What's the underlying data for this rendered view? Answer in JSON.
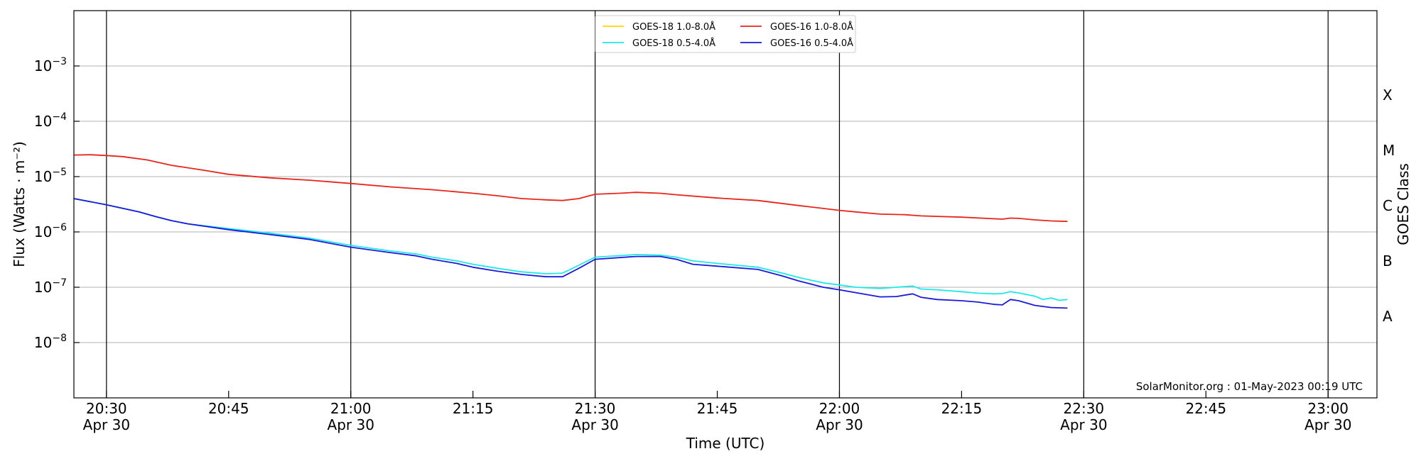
{
  "chart_data": {
    "type": "line",
    "y_scale": "log",
    "grid": "horizontal",
    "legend_position": "top-center",
    "xlabel": "Time (UTC)",
    "ylabel": "Flux (Watts · m⁻²)",
    "ylabel_right": "GOES Class",
    "xlim": [
      "2023-04-30 20:26",
      "2023-04-30 23:06"
    ],
    "ylim": [
      1e-09,
      0.01
    ],
    "x_ticks": [
      {
        "time": "20:30",
        "label": "20:30",
        "date": "Apr 30"
      },
      {
        "time": "20:45",
        "label": "20:45",
        "date": ""
      },
      {
        "time": "21:00",
        "label": "21:00",
        "date": "Apr 30"
      },
      {
        "time": "21:15",
        "label": "21:15",
        "date": ""
      },
      {
        "time": "21:30",
        "label": "21:30",
        "date": "Apr 30"
      },
      {
        "time": "21:45",
        "label": "21:45",
        "date": ""
      },
      {
        "time": "22:00",
        "label": "22:00",
        "date": "Apr 30"
      },
      {
        "time": "22:15",
        "label": "22:15",
        "date": ""
      },
      {
        "time": "22:30",
        "label": "22:30",
        "date": "Apr 30"
      },
      {
        "time": "22:45",
        "label": "22:45",
        "date": ""
      },
      {
        "time": "23:00",
        "label": "23:00",
        "date": "Apr 30"
      }
    ],
    "y_ticks": [
      {
        "value": 1e-08,
        "exp": "-8"
      },
      {
        "value": 1e-07,
        "exp": "-7"
      },
      {
        "value": 1e-06,
        "exp": "-6"
      },
      {
        "value": 1e-05,
        "exp": "-5"
      },
      {
        "value": 0.0001,
        "exp": "-4"
      },
      {
        "value": 0.001,
        "exp": "-3"
      }
    ],
    "goes_classes": [
      {
        "label": "A",
        "value": 3e-08
      },
      {
        "label": "B",
        "value": 3e-07
      },
      {
        "label": "C",
        "value": 3e-06
      },
      {
        "label": "M",
        "value": 3e-05
      },
      {
        "label": "X",
        "value": 0.0003
      }
    ],
    "vertical_lines": [
      "20:30",
      "21:00",
      "21:30",
      "22:00",
      "22:30",
      "23:00"
    ],
    "series": [
      {
        "name": "GOES-18 1.0-8.0Å",
        "color": "#ffd700",
        "points": []
      },
      {
        "name": "GOES-18 0.5-4.0Å",
        "color": "#1fe8e8",
        "points": [
          [
            "20:26",
            4e-06
          ],
          [
            "20:30",
            3.1e-06
          ],
          [
            "20:34",
            2.3e-06
          ],
          [
            "20:36",
            1.9e-06
          ],
          [
            "20:38",
            1.6e-06
          ],
          [
            "20:40",
            1.4e-06
          ],
          [
            "20:45",
            1.15e-06
          ],
          [
            "20:50",
            9.5e-07
          ],
          [
            "20:55",
            7.7e-07
          ],
          [
            "21:00",
            5.7e-07
          ],
          [
            "21:05",
            4.5e-07
          ],
          [
            "21:08",
            4e-07
          ],
          [
            "21:10",
            3.5e-07
          ],
          [
            "21:13",
            3e-07
          ],
          [
            "21:15",
            2.6e-07
          ],
          [
            "21:18",
            2.2e-07
          ],
          [
            "21:21",
            1.9e-07
          ],
          [
            "21:24",
            1.75e-07
          ],
          [
            "21:26",
            1.8e-07
          ],
          [
            "21:28",
            2.5e-07
          ],
          [
            "21:30",
            3.5e-07
          ],
          [
            "21:35",
            3.9e-07
          ],
          [
            "21:38",
            3.8e-07
          ],
          [
            "21:40",
            3.5e-07
          ],
          [
            "21:42",
            3e-07
          ],
          [
            "21:45",
            2.7e-07
          ],
          [
            "21:50",
            2.3e-07
          ],
          [
            "21:53",
            1.8e-07
          ],
          [
            "21:55",
            1.5e-07
          ],
          [
            "21:58",
            1.2e-07
          ],
          [
            "22:00",
            1.1e-07
          ],
          [
            "22:02",
            1e-07
          ],
          [
            "22:05",
            9.5e-08
          ],
          [
            "22:07",
            1e-07
          ],
          [
            "22:09",
            1.05e-07
          ],
          [
            "22:10",
            9.3e-08
          ],
          [
            "22:12",
            9e-08
          ],
          [
            "22:15",
            8.3e-08
          ],
          [
            "22:17",
            7.8e-08
          ],
          [
            "22:19",
            7.6e-08
          ],
          [
            "22:20",
            7.7e-08
          ],
          [
            "22:21",
            8.3e-08
          ],
          [
            "22:22",
            7.9e-08
          ],
          [
            "22:24",
            6.9e-08
          ],
          [
            "22:25",
            6e-08
          ],
          [
            "22:26",
            6.4e-08
          ],
          [
            "22:27",
            5.8e-08
          ],
          [
            "22:28",
            6e-08
          ]
        ]
      },
      {
        "name": "GOES-16 1.0-8.0Å",
        "color": "#e8251a",
        "points": [
          [
            "20:26",
            2.45e-05
          ],
          [
            "20:28",
            2.48e-05
          ],
          [
            "20:30",
            2.4e-05
          ],
          [
            "20:32",
            2.3e-05
          ],
          [
            "20:35",
            2e-05
          ],
          [
            "20:38",
            1.6e-05
          ],
          [
            "20:42",
            1.3e-05
          ],
          [
            "20:45",
            1.1e-05
          ],
          [
            "20:50",
            9.5e-06
          ],
          [
            "20:55",
            8.6e-06
          ],
          [
            "21:00",
            7.5e-06
          ],
          [
            "21:05",
            6.5e-06
          ],
          [
            "21:10",
            5.8e-06
          ],
          [
            "21:15",
            5e-06
          ],
          [
            "21:18",
            4.5e-06
          ],
          [
            "21:21",
            4e-06
          ],
          [
            "21:24",
            3.8e-06
          ],
          [
            "21:26",
            3.7e-06
          ],
          [
            "21:28",
            4e-06
          ],
          [
            "21:30",
            4.8e-06
          ],
          [
            "21:33",
            5e-06
          ],
          [
            "21:35",
            5.2e-06
          ],
          [
            "21:38",
            5e-06
          ],
          [
            "21:40",
            4.7e-06
          ],
          [
            "21:45",
            4.1e-06
          ],
          [
            "21:50",
            3.7e-06
          ],
          [
            "21:55",
            3e-06
          ],
          [
            "22:00",
            2.45e-06
          ],
          [
            "22:02",
            2.3e-06
          ],
          [
            "22:05",
            2.1e-06
          ],
          [
            "22:08",
            2.05e-06
          ],
          [
            "22:10",
            1.95e-06
          ],
          [
            "22:15",
            1.85e-06
          ],
          [
            "22:20",
            1.7e-06
          ],
          [
            "22:21",
            1.78e-06
          ],
          [
            "22:22",
            1.76e-06
          ],
          [
            "22:24",
            1.65e-06
          ],
          [
            "22:26",
            1.58e-06
          ],
          [
            "22:28",
            1.55e-06
          ]
        ]
      },
      {
        "name": "GOES-16 0.5-4.0Å",
        "color": "#1a1adb",
        "points": [
          [
            "20:26",
            4e-06
          ],
          [
            "20:30",
            3.1e-06
          ],
          [
            "20:34",
            2.3e-06
          ],
          [
            "20:36",
            1.9e-06
          ],
          [
            "20:38",
            1.6e-06
          ],
          [
            "20:40",
            1.4e-06
          ],
          [
            "20:45",
            1.1e-06
          ],
          [
            "20:50",
            9e-07
          ],
          [
            "20:55",
            7.3e-07
          ],
          [
            "21:00",
            5.3e-07
          ],
          [
            "21:05",
            4.2e-07
          ],
          [
            "21:08",
            3.7e-07
          ],
          [
            "21:10",
            3.2e-07
          ],
          [
            "21:13",
            2.7e-07
          ],
          [
            "21:15",
            2.3e-07
          ],
          [
            "21:18",
            1.95e-07
          ],
          [
            "21:21",
            1.7e-07
          ],
          [
            "21:24",
            1.55e-07
          ],
          [
            "21:26",
            1.55e-07
          ],
          [
            "21:28",
            2.2e-07
          ],
          [
            "21:30",
            3.2e-07
          ],
          [
            "21:35",
            3.6e-07
          ],
          [
            "21:38",
            3.6e-07
          ],
          [
            "21:40",
            3.2e-07
          ],
          [
            "21:42",
            2.6e-07
          ],
          [
            "21:45",
            2.4e-07
          ],
          [
            "21:50",
            2.1e-07
          ],
          [
            "21:53",
            1.6e-07
          ],
          [
            "21:55",
            1.3e-07
          ],
          [
            "21:58",
            1e-07
          ],
          [
            "22:00",
            9e-08
          ],
          [
            "22:02",
            8e-08
          ],
          [
            "22:05",
            6.7e-08
          ],
          [
            "22:07",
            6.8e-08
          ],
          [
            "22:09",
            7.6e-08
          ],
          [
            "22:10",
            6.6e-08
          ],
          [
            "22:12",
            6e-08
          ],
          [
            "22:15",
            5.7e-08
          ],
          [
            "22:17",
            5.4e-08
          ],
          [
            "22:19",
            4.9e-08
          ],
          [
            "22:20",
            4.8e-08
          ],
          [
            "22:21",
            6e-08
          ],
          [
            "22:22",
            5.7e-08
          ],
          [
            "22:24",
            4.7e-08
          ],
          [
            "22:26",
            4.3e-08
          ],
          [
            "22:28",
            4.2e-08
          ]
        ]
      }
    ],
    "watermark": "SolarMonitor.org : 01-May-2023 00:19 UTC"
  }
}
